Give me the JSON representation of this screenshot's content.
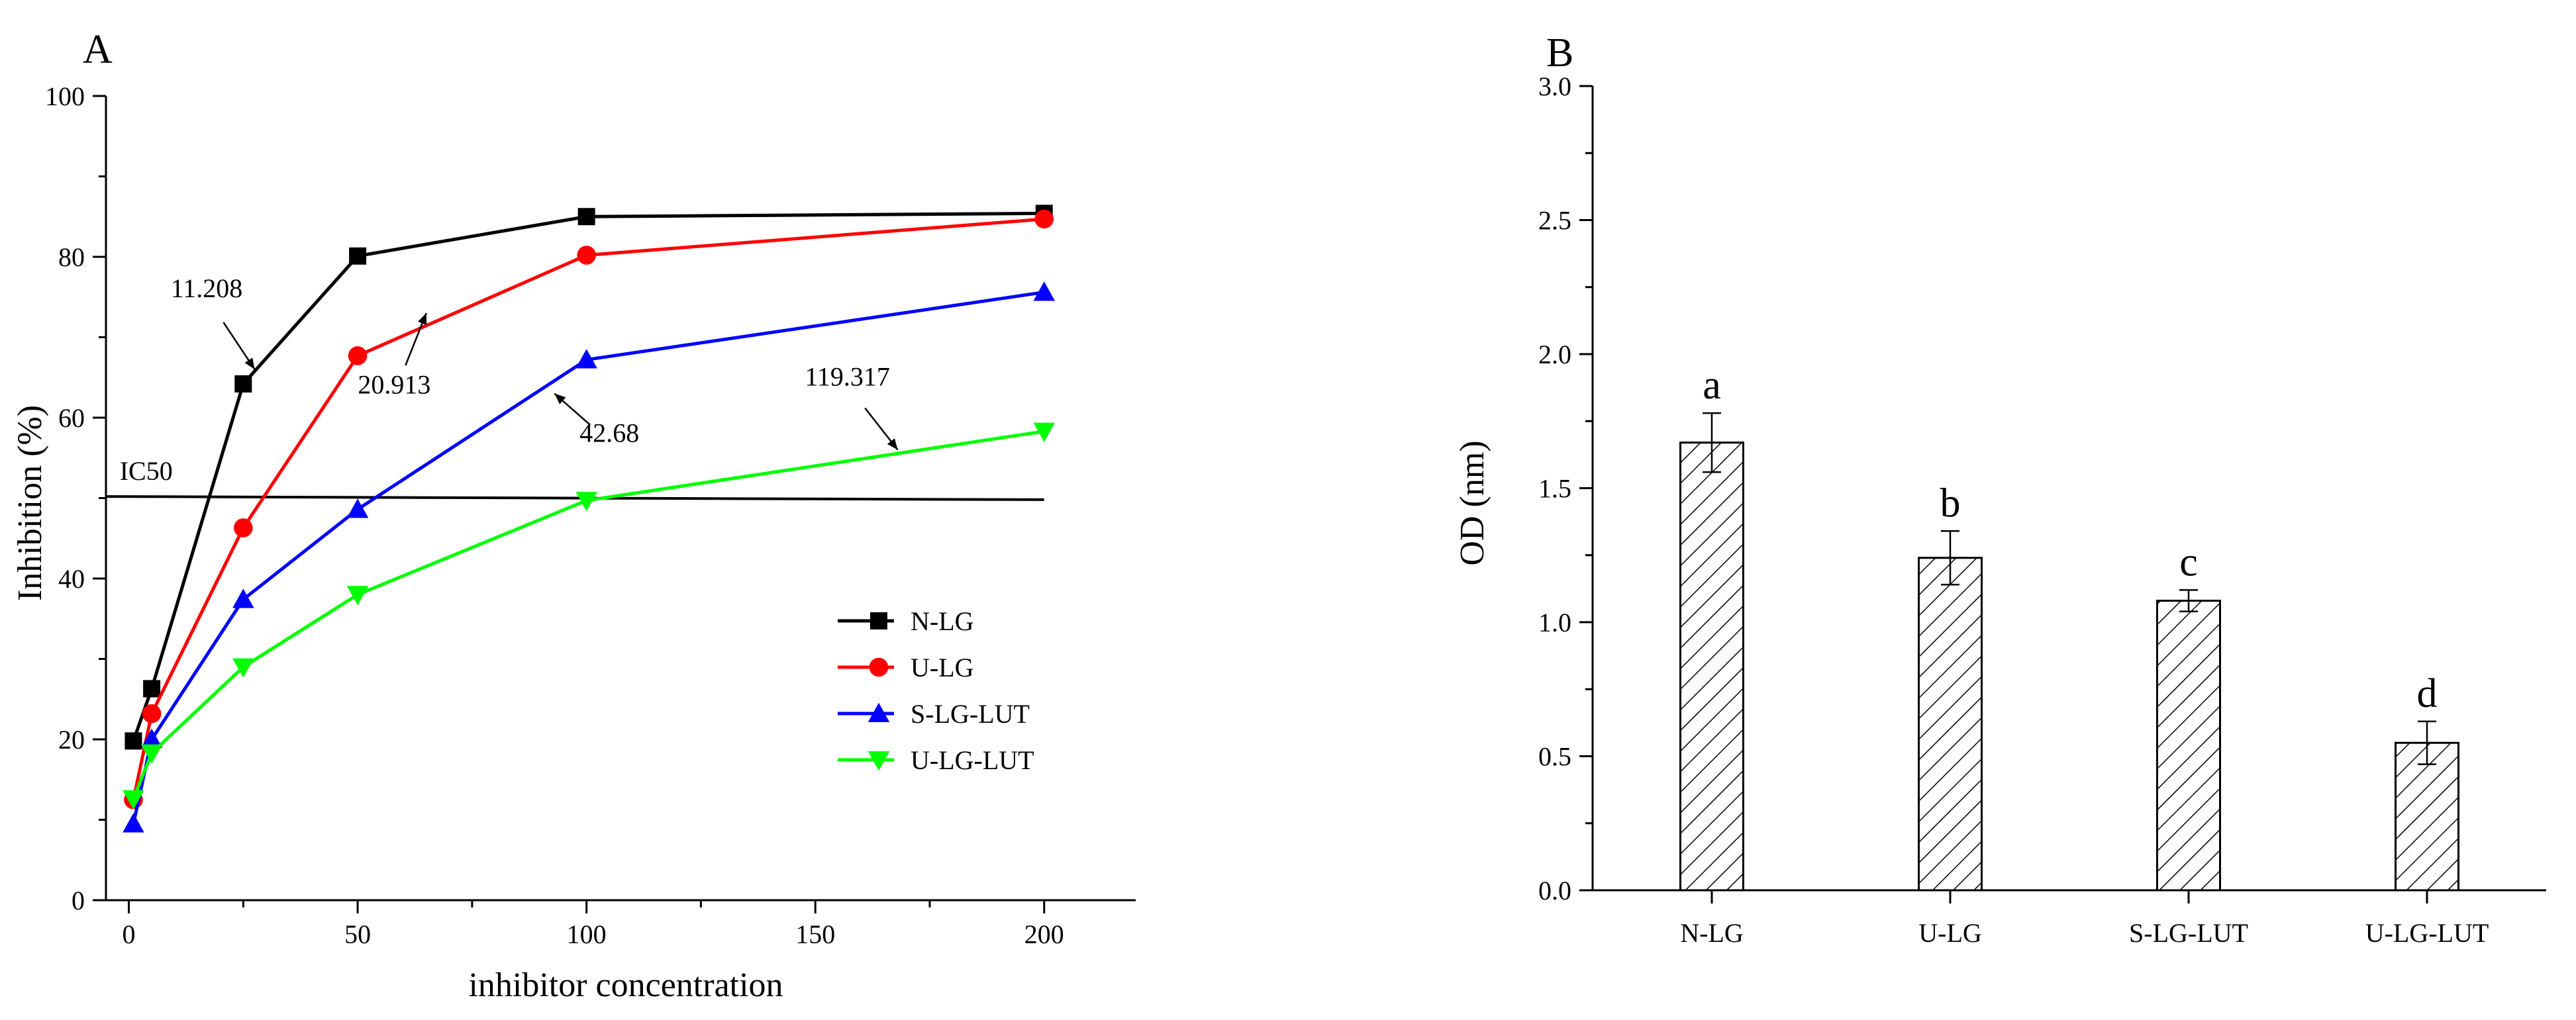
{
  "chart_data": [
    {
      "type": "line",
      "panel_label": "A",
      "title": "",
      "xlabel": "inhibitor concentration",
      "ylabel": "Inhibition (%)",
      "xlim": [
        -5,
        220
      ],
      "ylim": [
        0,
        100
      ],
      "x_ticks": [
        0,
        50,
        100,
        150,
        200
      ],
      "y_ticks": [
        0,
        20,
        40,
        60,
        80,
        100
      ],
      "legend_position": "center-right",
      "grid": false,
      "series": [
        {
          "name": "N-LG",
          "color": "#000000",
          "marker": "square",
          "x": [
            1,
            5,
            25,
            50,
            100,
            200
          ],
          "y": [
            19.8,
            26.3,
            64.2,
            80.1,
            85.0,
            85.4
          ]
        },
        {
          "name": "U-LG",
          "color": "#ff0000",
          "marker": "circle",
          "x": [
            1,
            5,
            25,
            50,
            100,
            200
          ],
          "y": [
            12.5,
            23.2,
            46.3,
            67.7,
            80.2,
            84.7
          ]
        },
        {
          "name": "S-LG-LUT",
          "color": "#0000ff",
          "marker": "triangle-up",
          "x": [
            1,
            5,
            25,
            50,
            100,
            200
          ],
          "y": [
            9.5,
            20.0,
            37.4,
            48.6,
            67.2,
            75.6
          ]
        },
        {
          "name": "U-LG-LUT",
          "color": "#00ff00",
          "marker": "triangle-down",
          "x": [
            1,
            5,
            25,
            50,
            100,
            200
          ],
          "y": [
            12.6,
            18.3,
            29.0,
            38.0,
            49.7,
            58.3
          ]
        }
      ],
      "reference_line": {
        "label": "IC50",
        "y_start": 50.2,
        "y_end": 49.8
      },
      "annotations": [
        {
          "text": "11.208",
          "x": 17,
          "y": 75,
          "arrow_to_x": 27.5,
          "arrow_to_y": 66
        },
        {
          "text": "20.913",
          "x": 58,
          "y": 63,
          "arrow_to_x": 65,
          "arrow_to_y": 73
        },
        {
          "text": "42.68",
          "x": 105,
          "y": 57,
          "arrow_to_x": 93,
          "arrow_to_y": 63
        },
        {
          "text": "119.317",
          "x": 157,
          "y": 64,
          "arrow_to_x": 168,
          "arrow_to_y": 56
        }
      ]
    },
    {
      "type": "bar",
      "panel_label": "B",
      "title": "",
      "xlabel": "",
      "ylabel": "OD (nm)",
      "ylim": [
        0,
        3.0
      ],
      "y_ticks": [
        0.0,
        0.5,
        1.0,
        1.5,
        2.0,
        2.5,
        3.0
      ],
      "y_tick_labels": [
        "0.0",
        "0.5",
        "1.0",
        "1.5",
        "2.0",
        "2.5",
        "3.0"
      ],
      "categories": [
        "N-LG",
        "U-LG",
        "S-LG-LUT",
        "U-LG-LUT"
      ],
      "values": [
        1.67,
        1.24,
        1.08,
        0.55
      ],
      "errors": [
        0.11,
        0.1,
        0.04,
        0.08
      ],
      "significance_letters": [
        "a",
        "b",
        "c",
        "d"
      ],
      "bar_fill": "hatched",
      "grid": false
    }
  ]
}
